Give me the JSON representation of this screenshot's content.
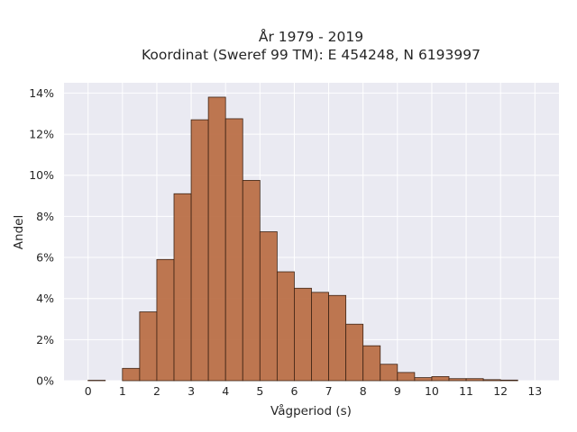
{
  "chart_data": {
    "type": "bar",
    "title": [
      "År 1979 - 2019",
      "Koordinat (Sweref 99 TM): E 454248, N 6193997"
    ],
    "xlabel": "Vågperiod (s)",
    "ylabel": "Andel",
    "bin_width": 0.5,
    "bins_start": [
      0,
      0.5,
      1,
      1.5,
      2,
      2.5,
      3,
      3.5,
      4,
      4.5,
      5,
      5.5,
      6,
      6.5,
      7,
      7.5,
      8,
      8.5,
      9,
      9.5,
      10,
      10.5,
      11,
      11.5,
      12,
      12.5
    ],
    "values": [
      0.02,
      0.0,
      0.6,
      3.35,
      5.9,
      9.1,
      12.7,
      13.8,
      12.75,
      9.75,
      7.25,
      5.3,
      4.5,
      4.3,
      4.15,
      2.75,
      1.7,
      0.8,
      0.4,
      0.15,
      0.2,
      0.1,
      0.1,
      0.05,
      0.03,
      0.0
    ],
    "xlim": [
      -0.7,
      13.7
    ],
    "ylim": [
      0,
      14.5
    ],
    "xticks": [
      0,
      1,
      2,
      3,
      4,
      5,
      6,
      7,
      8,
      9,
      10,
      11,
      12,
      13
    ],
    "yticks": [
      0,
      2,
      4,
      6,
      8,
      10,
      12,
      14
    ],
    "ytick_format": "%",
    "grid": true,
    "colors": {
      "plot_background": "#eaeaf2",
      "bar_fill": "#b86b42",
      "bar_edge": "#3d2314",
      "grid": "#ffffff"
    }
  }
}
